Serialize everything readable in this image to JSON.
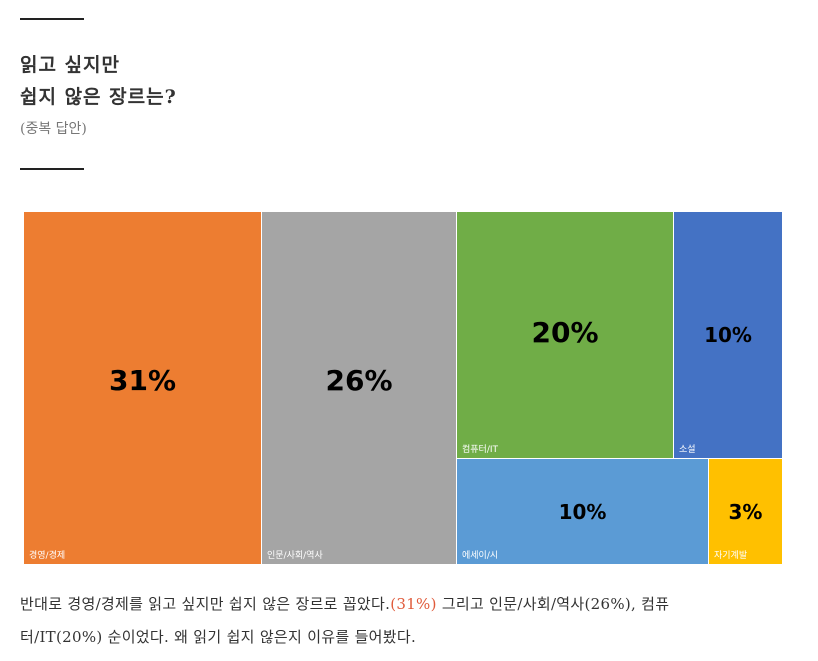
{
  "header": {
    "title_line1": "읽고 싶지만",
    "title_line2": "쉽지 않은 장르는?",
    "subtitle": "(중복 답안)"
  },
  "chart_data": {
    "type": "treemap",
    "unit": "%",
    "items": [
      {
        "label": "경영/경제",
        "value": 31,
        "value_label": "31%",
        "color": "#ED7D31",
        "text_color": "#000000"
      },
      {
        "label": "인문/사회/역사",
        "value": 26,
        "value_label": "26%",
        "color": "#A5A5A5",
        "text_color": "#000000"
      },
      {
        "label": "컴퓨터/IT",
        "value": 20,
        "value_label": "20%",
        "color": "#70AD47",
        "text_color": "#000000"
      },
      {
        "label": "소설",
        "value": 10,
        "value_label": "10%",
        "color": "#4472C4",
        "text_color": "#000000"
      },
      {
        "label": "에세이/시",
        "value": 10,
        "value_label": "10%",
        "color": "#5B9BD5",
        "text_color": "#000000"
      },
      {
        "label": "자기계발",
        "value": 3,
        "value_label": "3%",
        "color": "#FFC000",
        "text_color": "#000000"
      }
    ]
  },
  "caption": {
    "line1_pre": "반대로 경영/경제를 읽고 싶지만 쉽지 않은 장르로 꼽았다.",
    "line1_highlight": "(31%)",
    "line1_post": " 그리고 인문/사회/역사(26%), 컴퓨",
    "line2": "터/IT(20%) 순이었다. 왜 읽기 쉽지 않은지 이유를 들어봤다."
  }
}
